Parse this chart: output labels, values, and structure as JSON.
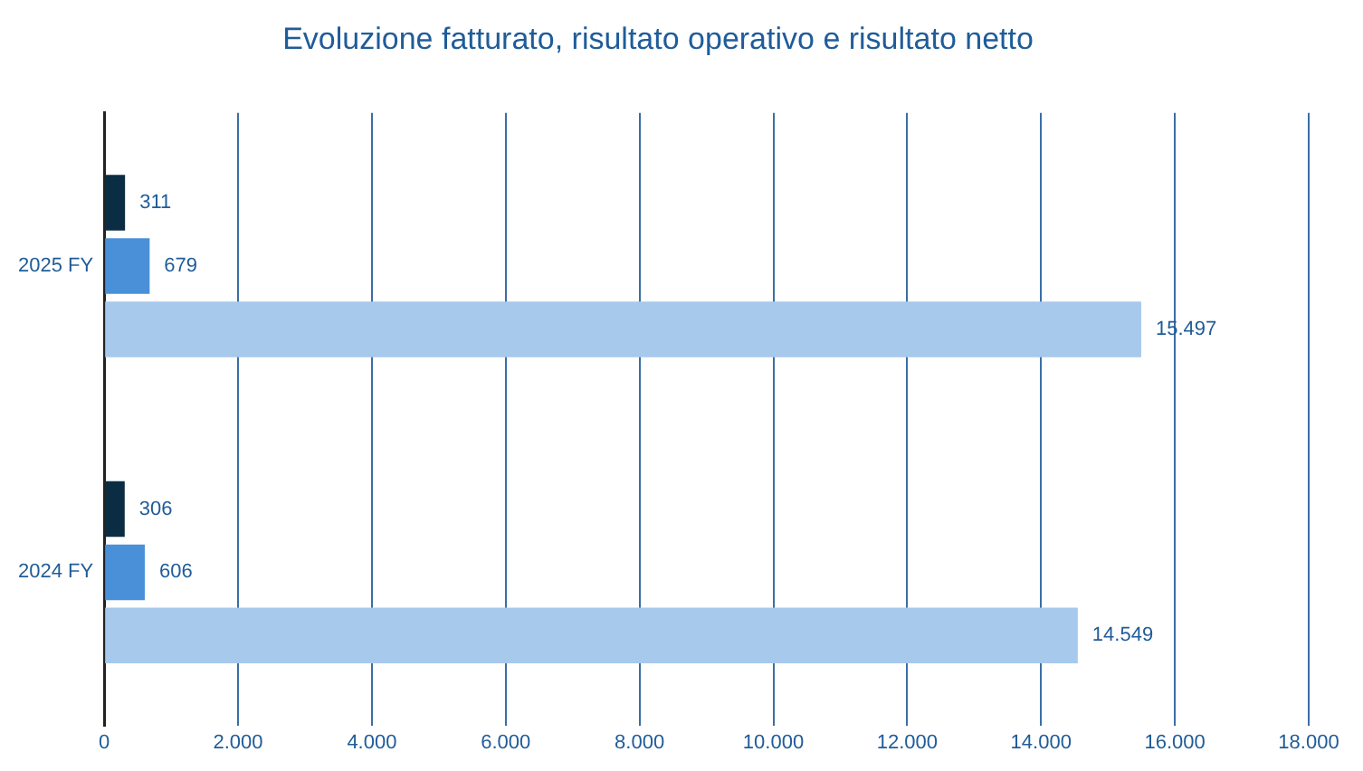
{
  "chart_data": {
    "type": "bar",
    "title": "Evoluzione fatturato, risultato operativo e risultato netto",
    "orientation": "horizontal",
    "categories": [
      "2025 FY",
      "2024 FY"
    ],
    "series": [
      {
        "color": "#0b2d44",
        "values": [
          311,
          306
        ],
        "value_labels": [
          "311",
          "306"
        ]
      },
      {
        "color": "#4a90d9",
        "values": [
          679,
          606
        ],
        "value_labels": [
          "679",
          "606"
        ]
      },
      {
        "color": "#a6c9ec",
        "values": [
          15497,
          14549
        ],
        "value_labels": [
          "15.497",
          "14.549"
        ]
      }
    ],
    "xlim": [
      0,
      18000
    ],
    "xticks": [
      0,
      {
        "value": 2000,
        "label": "2.000"
      },
      {
        "value": 4000,
        "label": "4.000"
      },
      {
        "value": 6000,
        "label": "6.000"
      },
      {
        "value": 8000,
        "label": "8.000"
      },
      {
        "value": 10000,
        "label": "10.000"
      },
      {
        "value": 12000,
        "label": "12.000"
      },
      {
        "value": 14000,
        "label": "14.000"
      },
      {
        "value": 16000,
        "label": "16.000"
      },
      {
        "value": 18000,
        "label": "18.000"
      }
    ],
    "grid": "x",
    "legend": false
  }
}
